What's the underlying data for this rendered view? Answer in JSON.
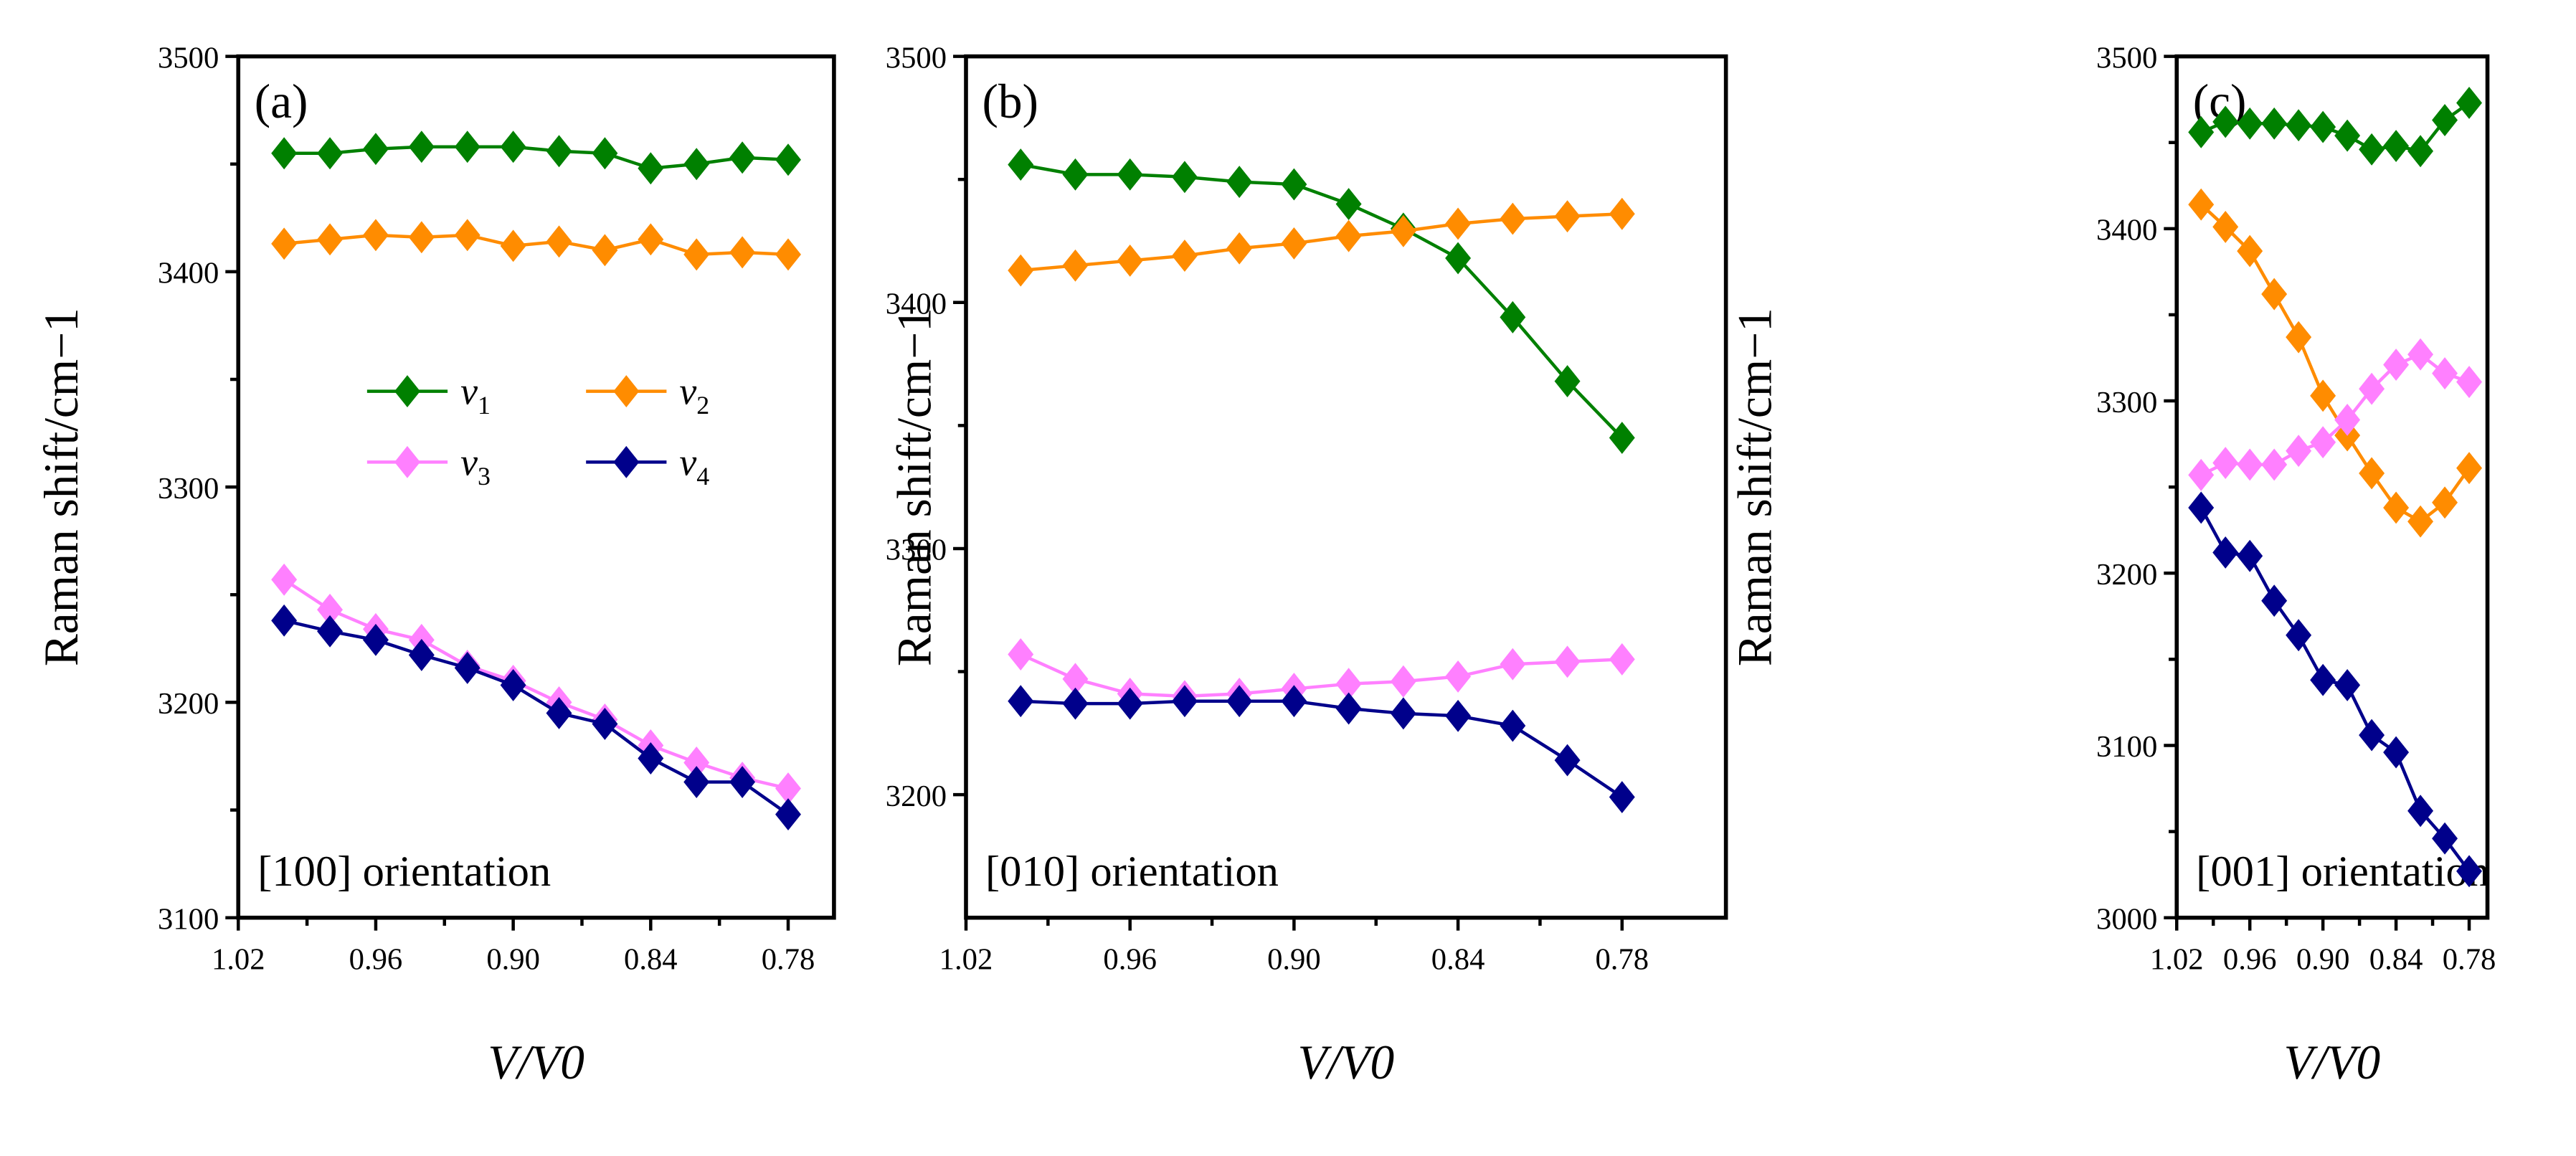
{
  "chart_data": [
    {
      "type": "line",
      "panel_label": "(a)",
      "annotation": "[100] orientation",
      "xlabel": "V/V0",
      "ylabel": "Raman shift/cm−1",
      "xlim": [
        1.02,
        0.76
      ],
      "ylim": [
        3100,
        3500
      ],
      "xticks": [
        "1.02",
        "0.96",
        "0.90",
        "0.84",
        "0.78"
      ],
      "yticks": [
        "3100",
        "3200",
        "3300",
        "3400",
        "3500"
      ],
      "x": [
        1.0,
        0.98,
        0.96,
        0.94,
        0.92,
        0.9,
        0.88,
        0.86,
        0.84,
        0.82,
        0.8,
        0.78
      ],
      "series": [
        {
          "name": "v1",
          "color": "#008000",
          "values": [
            3455,
            3455,
            3457,
            3458,
            3458,
            3458,
            3456,
            3455,
            3448,
            3450,
            3453,
            3452
          ]
        },
        {
          "name": "v2",
          "color": "#FF8C00",
          "values": [
            3413,
            3415,
            3417,
            3416,
            3417,
            3412,
            3414,
            3410,
            3415,
            3408,
            3409,
            3408
          ]
        },
        {
          "name": "v3",
          "color": "#FF80FF",
          "values": [
            3257,
            3243,
            3234,
            3229,
            3217,
            3210,
            3200,
            3192,
            3180,
            3172,
            3165,
            3160
          ]
        },
        {
          "name": "v4",
          "color": "#00008B",
          "values": [
            3238,
            3233,
            3229,
            3222,
            3216,
            3208,
            3195,
            3190,
            3174,
            3163,
            3163,
            3148
          ]
        }
      ],
      "legend": {
        "placement": "center-left",
        "entries": [
          {
            "symbol": "v",
            "sub": "1"
          },
          {
            "symbol": "v",
            "sub": "2"
          },
          {
            "symbol": "v",
            "sub": "3"
          },
          {
            "symbol": "v",
            "sub": "4"
          }
        ]
      }
    },
    {
      "type": "line",
      "panel_label": "(b)",
      "annotation": "[010] orientation",
      "xlabel": "V/V0",
      "ylabel": "Raman shift/cm−1",
      "xlim": [
        1.02,
        0.742
      ],
      "ylim": [
        3150,
        3500
      ],
      "xticks": [
        "1.02",
        "0.96",
        "0.90",
        "0.84",
        "0.78"
      ],
      "yticks": [
        "3200",
        "3300",
        "3400",
        "3500"
      ],
      "x": [
        1.0,
        0.98,
        0.96,
        0.94,
        0.92,
        0.9,
        0.88,
        0.86,
        0.84,
        0.82,
        0.8,
        0.78
      ],
      "series": [
        {
          "name": "v1",
          "color": "#008000",
          "values": [
            3456,
            3452,
            3452,
            3451,
            3449,
            3448,
            3440,
            3430,
            3418,
            3394,
            3368,
            3345
          ]
        },
        {
          "name": "v2",
          "color": "#FF8C00",
          "values": [
            3413,
            3415,
            3417,
            3419,
            3422,
            3424,
            3427,
            3429,
            3432,
            3434,
            3435,
            3436
          ]
        },
        {
          "name": "v3",
          "color": "#FF80FF",
          "values": [
            3257,
            3247,
            3241,
            3240,
            3241,
            3243,
            3245,
            3246,
            3248,
            3253,
            3254,
            3255
          ]
        },
        {
          "name": "v4",
          "color": "#00008B",
          "values": [
            3238,
            3237,
            3237,
            3238,
            3238,
            3238,
            3235,
            3233,
            3232,
            3228,
            3214,
            3199
          ]
        }
      ]
    },
    {
      "type": "line",
      "panel_label": "(c)",
      "annotation": "[001] orientation",
      "xlabel": "V/V0",
      "ylabel": "Raman shift/cm−1",
      "xlim": [
        1.02,
        0.765
      ],
      "ylim": [
        3000,
        3500
      ],
      "xticks": [
        "1.02",
        "0.96",
        "0.90",
        "0.84",
        "0.78"
      ],
      "yticks": [
        "3000",
        "3100",
        "3200",
        "3300",
        "3400",
        "3500"
      ],
      "x": [
        1.0,
        0.98,
        0.96,
        0.94,
        0.92,
        0.9,
        0.88,
        0.86,
        0.84,
        0.82,
        0.8,
        0.78
      ],
      "series": [
        {
          "name": "v1",
          "color": "#008000",
          "values": [
            3456,
            3462,
            3461,
            3461,
            3460,
            3459,
            3454,
            3446,
            3448,
            3445,
            3463,
            3473
          ]
        },
        {
          "name": "v2",
          "color": "#FF8C00",
          "values": [
            3414,
            3401,
            3387,
            3362,
            3337,
            3303,
            3280,
            3258,
            3238,
            3230,
            3241,
            3261
          ]
        },
        {
          "name": "v3",
          "color": "#FF80FF",
          "values": [
            3257,
            3264,
            3263,
            3263,
            3271,
            3276,
            3289,
            3307,
            3321,
            3327,
            3316,
            3311
          ]
        },
        {
          "name": "v4",
          "color": "#00008B",
          "values": [
            3238,
            3212,
            3210,
            3184,
            3164,
            3138,
            3135,
            3106,
            3096,
            3062,
            3046,
            3027
          ]
        }
      ]
    }
  ]
}
